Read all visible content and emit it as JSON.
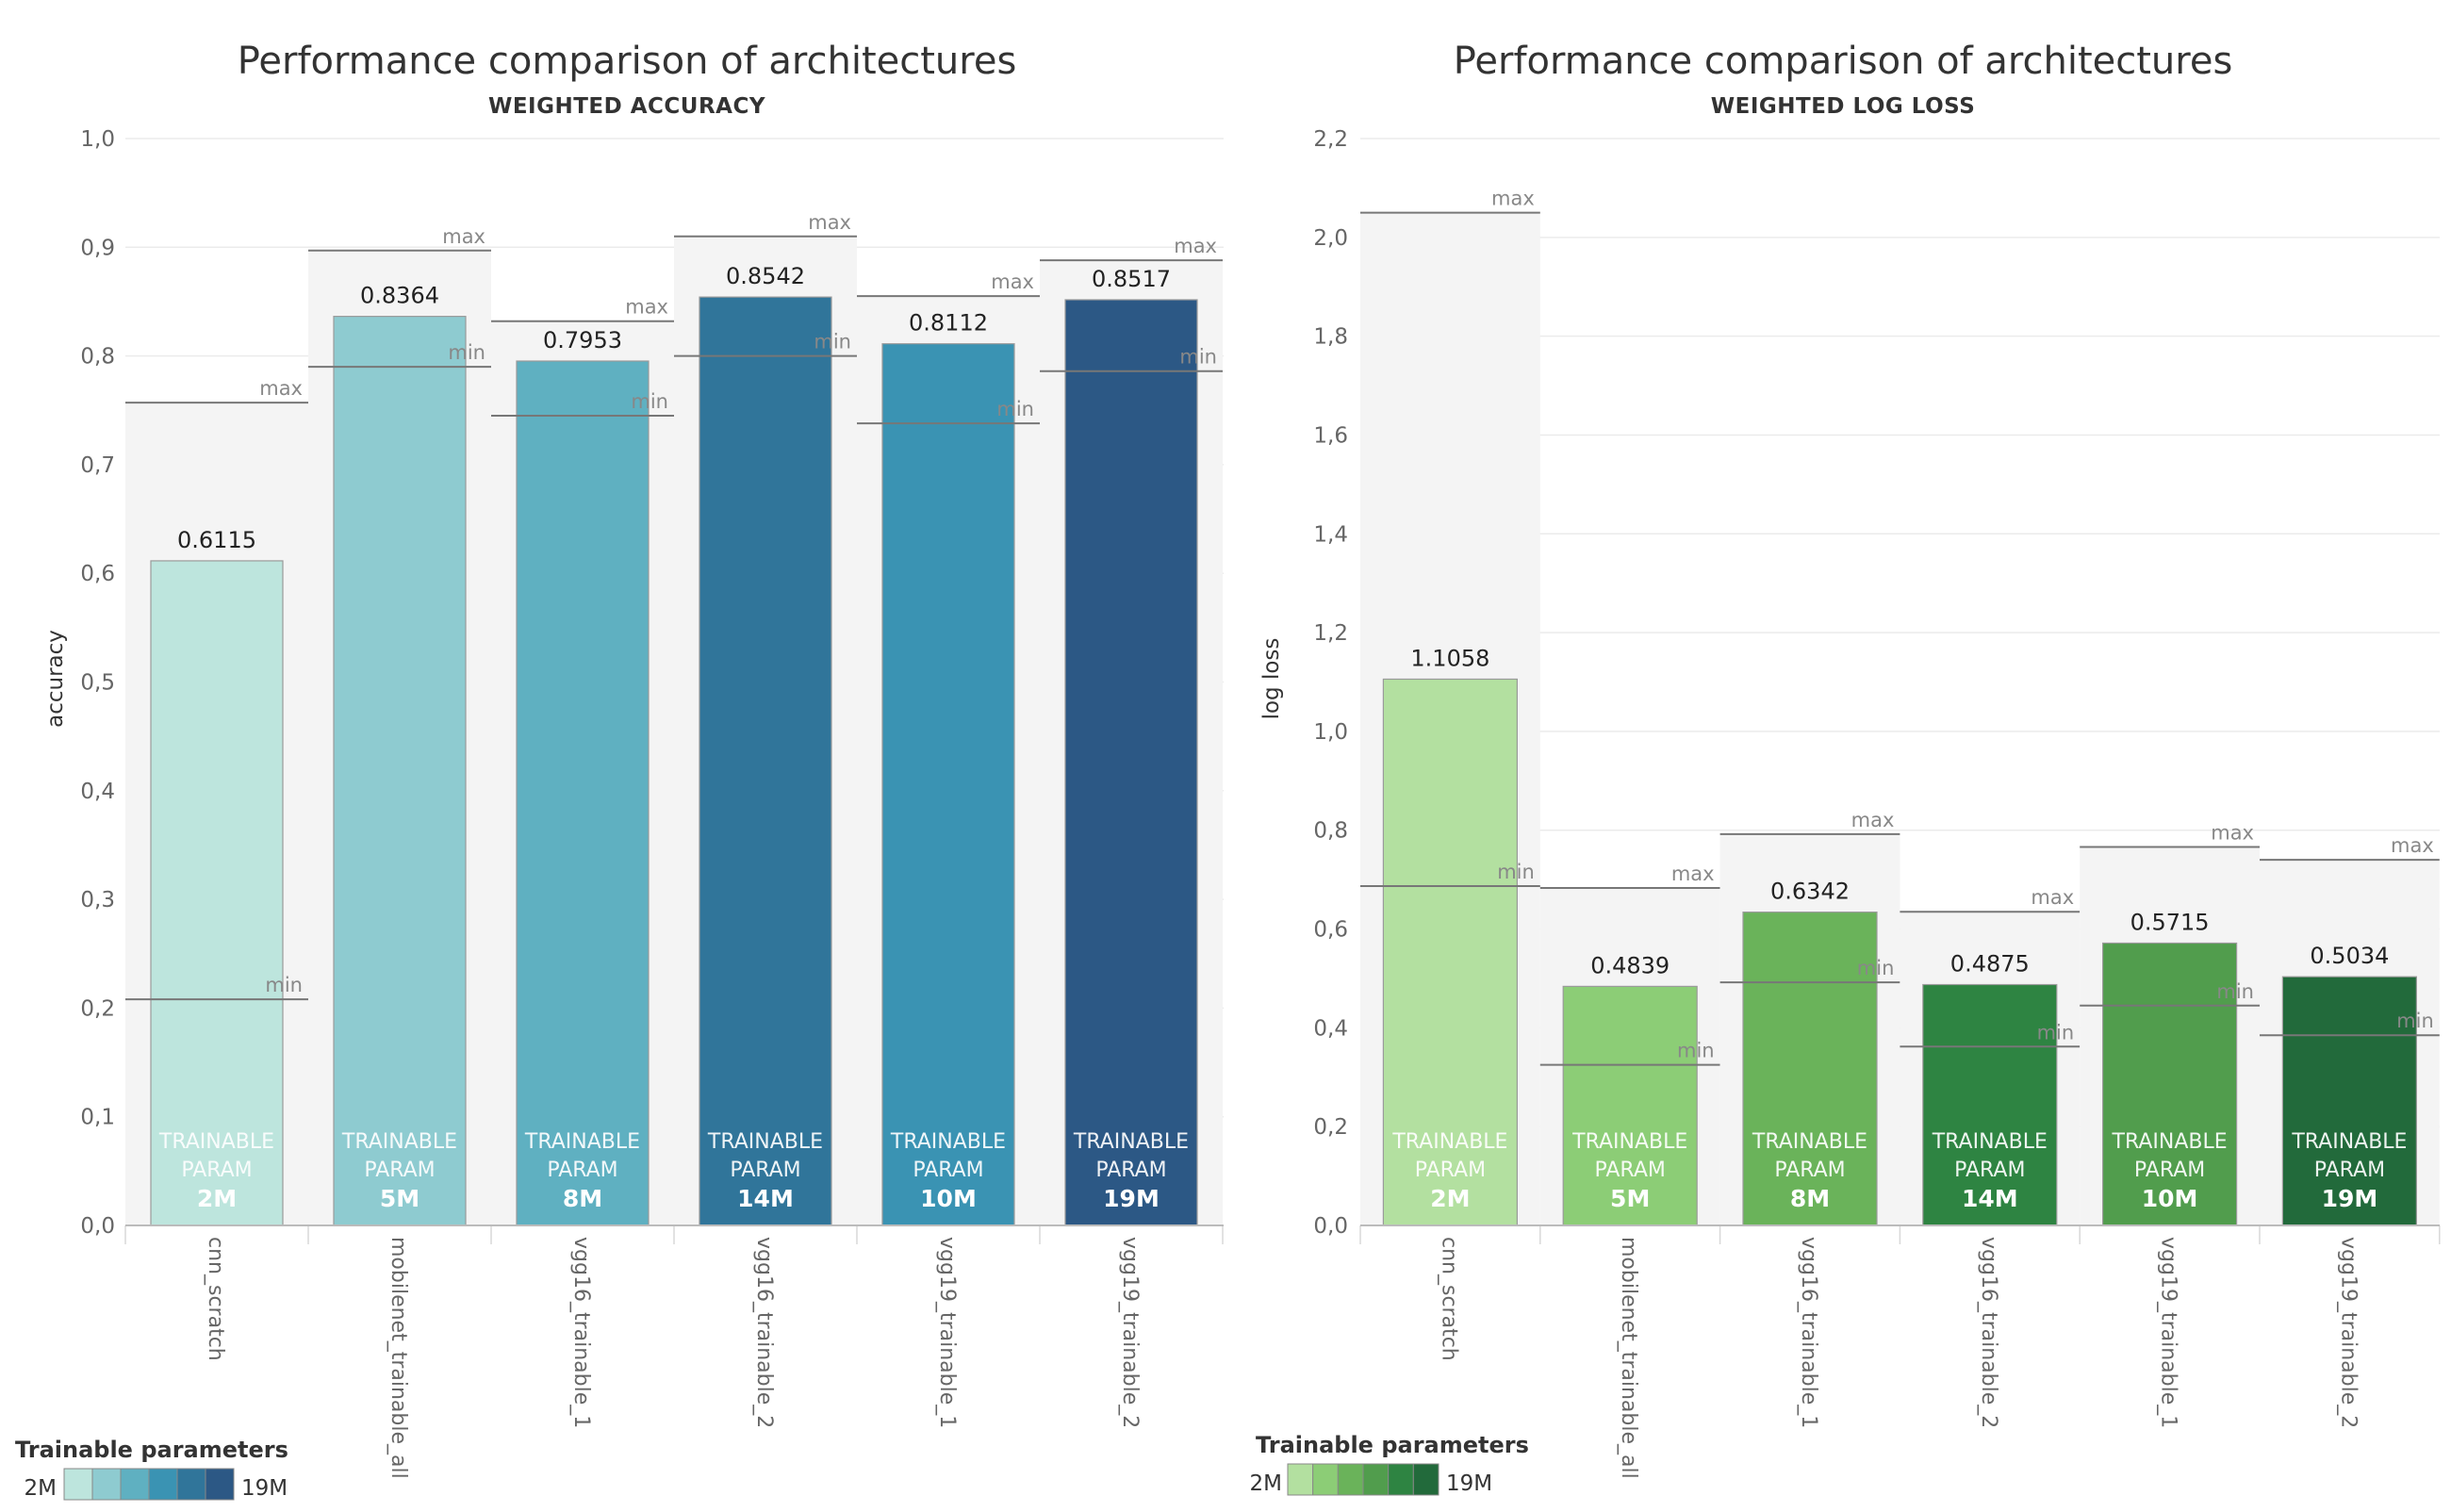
{
  "chart_data": [
    {
      "type": "bar",
      "title": "Performance comparison of architectures",
      "subtitle": "WEIGHTED ACCURACY",
      "xlabel": "",
      "ylabel": "accuracy",
      "ylim": [
        0,
        1.0
      ],
      "yticks": [
        "0,0",
        "0,1",
        "0,2",
        "0,3",
        "0,4",
        "0,5",
        "0,6",
        "0,7",
        "0,8",
        "0,9",
        "1,0"
      ],
      "grid": true,
      "categories": [
        "cnn_scratch",
        "mobilenet_trainable_all",
        "vgg16_trainable_1",
        "vgg16_trainable_2",
        "vgg19_trainable_1",
        "vgg19_trainable_2"
      ],
      "values": [
        0.6115,
        0.8364,
        0.7953,
        0.8542,
        0.8112,
        0.8517
      ],
      "value_labels": [
        "0.6115",
        "0.8364",
        "0.7953",
        "0.8542",
        "0.8112",
        "0.8517"
      ],
      "max": [
        0.757,
        0.897,
        0.832,
        0.91,
        0.855,
        0.888
      ],
      "min": [
        0.208,
        0.79,
        0.745,
        0.8,
        0.738,
        0.786
      ],
      "trainable_params_labels": [
        "2M",
        "5M",
        "8M",
        "14M",
        "10M",
        "19M"
      ],
      "colors": [
        "#bde5dd",
        "#8ecbd0",
        "#5fb0c1",
        "#30759a",
        "#3a93b3",
        "#2c5885"
      ],
      "max_label": "max",
      "min_label": "min",
      "inside_label_line1": "TRAINABLE",
      "inside_label_line2": "PARAM",
      "legend": {
        "title": "Trainable parameters",
        "min_label": "2M",
        "max_label": "19M",
        "placement": "bottom-left",
        "colors": [
          "#bde5dd",
          "#8ecbd0",
          "#5fb0c1",
          "#3a93b3",
          "#30759a",
          "#2c5885"
        ]
      }
    },
    {
      "type": "bar",
      "title": "Performance comparison of architectures",
      "subtitle": "WEIGHTED LOG LOSS",
      "xlabel": "",
      "ylabel": "log loss",
      "ylim": [
        0,
        2.2
      ],
      "yticks": [
        "0,0",
        "0,2",
        "0,4",
        "0,6",
        "0,8",
        "1,0",
        "1,2",
        "1,4",
        "1,6",
        "1,8",
        "2,0",
        "2,2"
      ],
      "grid": true,
      "categories": [
        "cnn_scratch",
        "mobilenet_trainable_all",
        "vgg16_trainable_1",
        "vgg16_trainable_2",
        "vgg19_trainable_1",
        "vgg19_trainable_2"
      ],
      "values": [
        1.1058,
        0.4839,
        0.6342,
        0.4875,
        0.5715,
        0.5034
      ],
      "value_labels": [
        "1.1058",
        "0.4839",
        "0.6342",
        "0.4875",
        "0.5715",
        "0.5034"
      ],
      "max": [
        2.05,
        0.683,
        0.792,
        0.635,
        0.766,
        0.74
      ],
      "min": [
        0.687,
        0.325,
        0.492,
        0.362,
        0.445,
        0.385
      ],
      "trainable_params_labels": [
        "2M",
        "5M",
        "8M",
        "14M",
        "10M",
        "19M"
      ],
      "colors": [
        "#b3e0a0",
        "#8ccd76",
        "#6ab35a",
        "#2e8442",
        "#519d4d",
        "#226a3b"
      ],
      "max_label": "max",
      "min_label": "min",
      "inside_label_line1": "TRAINABLE",
      "inside_label_line2": "PARAM",
      "legend": {
        "title": "Trainable parameters",
        "min_label": "2M",
        "max_label": "19M",
        "placement": "bottom-left",
        "colors": [
          "#b3e0a0",
          "#8ccd76",
          "#6ab35a",
          "#519d4d",
          "#2e8442",
          "#226a3b"
        ]
      }
    }
  ]
}
